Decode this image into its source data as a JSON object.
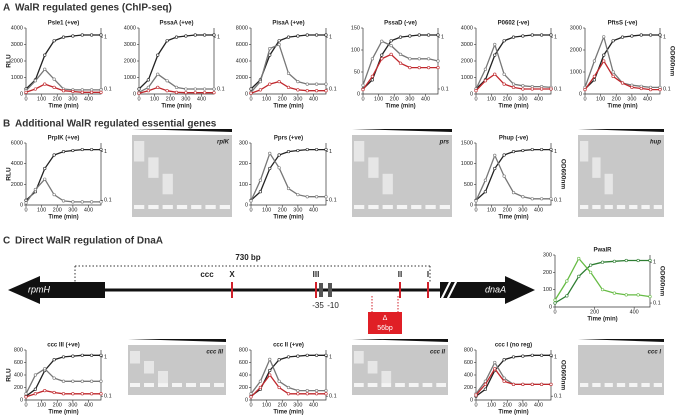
{
  "sections": [
    {
      "letter": "A",
      "title": "WalR regulated genes (ChIP-seq)"
    },
    {
      "letter": "B",
      "title": "Additional WalR regulated essential genes"
    },
    {
      "letter": "C",
      "title": "Direct WalR regulation of DnaA"
    }
  ],
  "gels": [
    {
      "label": "rplK"
    },
    {
      "label": "prs"
    },
    {
      "label": "hup"
    },
    {
      "label": "ccc III"
    },
    {
      "label": "ccc II"
    },
    {
      "label": "ccc I"
    }
  ],
  "diagram": {
    "span": "730 bp",
    "site": "ccc",
    "marks": [
      "X",
      "III",
      "II",
      "I"
    ],
    "m35": "-35",
    "m10": "-10",
    "left_gene": "rpmH",
    "right_gene": "dnaA",
    "delta": "Δ",
    "deletion": "56bp"
  },
  "chart_data": [
    {
      "type": "line",
      "title": "Psle1 (+ve)",
      "ylabel": "RLU",
      "xlabel": "Time (min)",
      "x": [
        0,
        60,
        120,
        180,
        240,
        300,
        360,
        420,
        480
      ],
      "xlim": [
        0,
        480
      ],
      "xticks": [
        0,
        100,
        200,
        300,
        400
      ],
      "ylim": [
        0,
        4000
      ],
      "yticks": [
        0,
        1000,
        2000,
        3000,
        4000
      ],
      "y2lim": [
        0.08,
        1.5
      ],
      "y2ticks": [
        0.1,
        1
      ],
      "y2log": true,
      "series": [
        {
          "color": "#222222",
          "axis": "y2",
          "values": [
            0.1,
            0.15,
            0.45,
            0.85,
            1,
            1.05,
            1.1,
            1.1,
            1.1
          ]
        },
        {
          "color": "#777777",
          "values": [
            200,
            800,
            1500,
            900,
            300,
            250,
            250,
            250,
            250
          ]
        },
        {
          "color": "#c0282d",
          "values": [
            100,
            300,
            600,
            400,
            200,
            150,
            100,
            100,
            100
          ]
        }
      ]
    },
    {
      "type": "line",
      "title": "PssaA (+ve)",
      "xlabel": "Time (min)",
      "x": [
        0,
        60,
        120,
        180,
        240,
        300,
        360,
        420,
        480
      ],
      "xlim": [
        0,
        480
      ],
      "xticks": [
        0,
        100,
        200,
        300,
        400
      ],
      "ylim": [
        0,
        4000
      ],
      "yticks": [
        0,
        1000,
        2000,
        3000,
        4000
      ],
      "y2lim": [
        0.08,
        1.5
      ],
      "y2ticks": [
        0.1,
        1
      ],
      "y2log": true,
      "series": [
        {
          "color": "#222222",
          "axis": "y2",
          "values": [
            0.1,
            0.15,
            0.45,
            0.85,
            1,
            1.05,
            1.1,
            1.1,
            1.1
          ]
        },
        {
          "color": "#777777",
          "values": [
            100,
            400,
            1200,
            800,
            400,
            300,
            300,
            300,
            300
          ]
        },
        {
          "color": "#c0282d",
          "values": [
            50,
            200,
            400,
            200,
            100,
            80,
            80,
            80,
            80
          ]
        }
      ]
    },
    {
      "type": "line",
      "title": "PisaA (+ve)",
      "xlabel": "Time (min)",
      "x": [
        0,
        60,
        120,
        180,
        240,
        300,
        360,
        420,
        480
      ],
      "xlim": [
        0,
        480
      ],
      "xticks": [
        0,
        100,
        200,
        300,
        400
      ],
      "ylim": [
        0,
        8000
      ],
      "yticks": [
        0,
        2000,
        4000,
        6000,
        8000
      ],
      "y2lim": [
        0.08,
        1.5
      ],
      "y2ticks": [
        0.1,
        1
      ],
      "y2log": true,
      "series": [
        {
          "color": "#222222",
          "axis": "y2",
          "values": [
            0.1,
            0.15,
            0.45,
            0.85,
            1,
            1.05,
            1.1,
            1.1,
            1.1
          ]
        },
        {
          "color": "#777777",
          "values": [
            200,
            1500,
            5500,
            6000,
            2500,
            1500,
            1200,
            1200,
            1200
          ]
        },
        {
          "color": "#c0282d",
          "values": [
            100,
            500,
            1200,
            1500,
            800,
            500,
            400,
            400,
            400
          ]
        }
      ]
    },
    {
      "type": "line",
      "title": "PssaD (-ve)",
      "xlabel": "Time (min)",
      "x": [
        0,
        60,
        120,
        180,
        240,
        300,
        360,
        420,
        480
      ],
      "xlim": [
        0,
        480
      ],
      "xticks": [
        0,
        100,
        200,
        300,
        400
      ],
      "ylim": [
        0,
        150
      ],
      "yticks": [
        0,
        50,
        100,
        150
      ],
      "y2lim": [
        0.08,
        1.5
      ],
      "y2ticks": [
        0.1,
        1
      ],
      "y2log": true,
      "series": [
        {
          "color": "#222222",
          "axis": "y2",
          "values": [
            0.1,
            0.15,
            0.45,
            0.85,
            1,
            1.05,
            1.1,
            1.1,
            1.1
          ]
        },
        {
          "color": "#777777",
          "values": [
            20,
            80,
            120,
            110,
            90,
            80,
            80,
            80,
            75
          ]
        },
        {
          "color": "#c0282d",
          "values": [
            10,
            40,
            80,
            90,
            70,
            60,
            60,
            60,
            60
          ]
        }
      ]
    },
    {
      "type": "line",
      "title": "P0602 (-ve)",
      "xlabel": "Time (min)",
      "x": [
        0,
        60,
        120,
        180,
        240,
        300,
        360,
        420,
        480
      ],
      "xlim": [
        0,
        480
      ],
      "xticks": [
        0,
        100,
        200,
        300,
        400
      ],
      "ylim": [
        0,
        4000
      ],
      "yticks": [
        0,
        1000,
        2000,
        3000,
        4000
      ],
      "y2lim": [
        0.08,
        1.5
      ],
      "y2ticks": [
        0.1,
        1
      ],
      "y2log": true,
      "series": [
        {
          "color": "#222222",
          "axis": "y2",
          "values": [
            0.1,
            0.15,
            0.45,
            0.85,
            1,
            1.05,
            1.1,
            1.1,
            1.1
          ]
        },
        {
          "color": "#777777",
          "values": [
            300,
            1500,
            3000,
            1200,
            600,
            500,
            450,
            450,
            400
          ]
        },
        {
          "color": "#c0282d",
          "values": [
            200,
            800,
            1200,
            600,
            400,
            300,
            300,
            300,
            300
          ]
        }
      ]
    },
    {
      "type": "line",
      "title": "PftsS (-ve)",
      "y2label": "OD600nm",
      "xlabel": "Time (min)",
      "x": [
        0,
        60,
        120,
        180,
        240,
        300,
        360,
        420,
        480
      ],
      "xlim": [
        0,
        480
      ],
      "xticks": [
        0,
        100,
        200,
        300,
        400
      ],
      "ylim": [
        0,
        3000
      ],
      "yticks": [
        0,
        1000,
        2000,
        3000
      ],
      "y2lim": [
        0.08,
        1.5
      ],
      "y2ticks": [
        0.1,
        1
      ],
      "y2log": true,
      "series": [
        {
          "color": "#222222",
          "axis": "y2",
          "values": [
            0.1,
            0.15,
            0.45,
            0.85,
            1,
            1.05,
            1.1,
            1.1,
            1.1
          ]
        },
        {
          "color": "#777777",
          "values": [
            300,
            1500,
            2600,
            1000,
            500,
            400,
            350,
            300,
            300
          ]
        },
        {
          "color": "#c0282d",
          "values": [
            200,
            800,
            1500,
            800,
            500,
            300,
            250,
            200,
            200
          ]
        }
      ]
    },
    {
      "type": "line",
      "title": "PrplK (+ve)",
      "ylabel": "RLU",
      "xlabel": "Time (min)",
      "x": [
        0,
        60,
        120,
        180,
        240,
        300,
        360,
        420,
        480
      ],
      "xlim": [
        0,
        480
      ],
      "xticks": [
        0,
        100,
        200,
        300,
        400
      ],
      "ylim": [
        0,
        6000
      ],
      "yticks": [
        0,
        2000,
        4000,
        6000
      ],
      "y2lim": [
        0.08,
        1.5
      ],
      "y2ticks": [
        0.1,
        1
      ],
      "y2log": true,
      "series": [
        {
          "color": "#222222",
          "axis": "y2",
          "values": [
            0.1,
            0.15,
            0.45,
            0.85,
            1,
            1.05,
            1.1,
            1.1,
            1.1
          ]
        },
        {
          "color": "#777777",
          "values": [
            200,
            1500,
            2500,
            1000,
            400,
            300,
            300,
            300,
            300
          ]
        }
      ]
    },
    {
      "type": "line",
      "title": "Pprs (+ve)",
      "xlabel": "Time (min)",
      "x": [
        0,
        60,
        120,
        180,
        240,
        300,
        360,
        420,
        480
      ],
      "xlim": [
        0,
        480
      ],
      "xticks": [
        0,
        100,
        200,
        300,
        400
      ],
      "ylim": [
        0,
        300
      ],
      "yticks": [
        0,
        100,
        200,
        300
      ],
      "y2lim": [
        0.08,
        1.5
      ],
      "y2ticks": [
        0.1,
        1
      ],
      "y2log": true,
      "series": [
        {
          "color": "#222222",
          "axis": "y2",
          "values": [
            0.1,
            0.15,
            0.45,
            0.85,
            1,
            1.05,
            1.1,
            1.1,
            1.1
          ]
        },
        {
          "color": "#777777",
          "values": [
            20,
            120,
            250,
            180,
            80,
            50,
            40,
            40,
            40
          ]
        }
      ]
    },
    {
      "type": "line",
      "title": "Phup (-ve)",
      "y2label": "OD600nm",
      "xlabel": "Time (min)",
      "x": [
        0,
        60,
        120,
        180,
        240,
        300,
        360,
        420,
        480
      ],
      "xlim": [
        0,
        480
      ],
      "xticks": [
        0,
        100,
        200,
        300,
        400
      ],
      "ylim": [
        0,
        1500
      ],
      "yticks": [
        0,
        500,
        1000,
        1500
      ],
      "y2lim": [
        0.08,
        1.5
      ],
      "y2ticks": [
        0.1,
        1
      ],
      "y2log": true,
      "series": [
        {
          "color": "#222222",
          "axis": "y2",
          "values": [
            0.1,
            0.15,
            0.45,
            0.85,
            1,
            1.05,
            1.1,
            1.1,
            1.1
          ]
        },
        {
          "color": "#777777",
          "values": [
            100,
            600,
            1200,
            700,
            300,
            200,
            150,
            150,
            150
          ]
        }
      ]
    },
    {
      "type": "line",
      "title": "PwalR",
      "y2label": "OD600nm",
      "xlabel": "Time (min)",
      "x": [
        0,
        60,
        120,
        180,
        240,
        300,
        360,
        420,
        480
      ],
      "xlim": [
        0,
        480
      ],
      "xticks": [
        0,
        200,
        400
      ],
      "ylim": [
        0,
        300
      ],
      "yticks": [
        0,
        100,
        200,
        300
      ],
      "y2lim": [
        0.08,
        1.5
      ],
      "y2ticks": [
        0.1,
        1
      ],
      "y2log": true,
      "series": [
        {
          "color": "#2e7d32",
          "axis": "y2",
          "values": [
            0.1,
            0.15,
            0.45,
            0.85,
            1,
            1.05,
            1.1,
            1.1,
            1.1
          ]
        },
        {
          "color": "#66bb44",
          "values": [
            40,
            150,
            280,
            200,
            100,
            80,
            70,
            70,
            60
          ]
        }
      ]
    },
    {
      "type": "line",
      "title": "ccc III (+ve)",
      "ylabel": "RLU",
      "xlabel": "Time (min)",
      "x": [
        0,
        60,
        120,
        180,
        240,
        300,
        360,
        420,
        480
      ],
      "xlim": [
        0,
        480
      ],
      "xticks": [
        0,
        100,
        200,
        300,
        400
      ],
      "ylim": [
        0,
        800
      ],
      "yticks": [
        0,
        200,
        400,
        600,
        800
      ],
      "y2lim": [
        0.08,
        1.5
      ],
      "y2ticks": [
        0.1,
        1
      ],
      "y2log": true,
      "series": [
        {
          "color": "#222222",
          "axis": "y2",
          "values": [
            0.1,
            0.15,
            0.45,
            0.85,
            1,
            1.05,
            1.1,
            1.1,
            1.1
          ]
        },
        {
          "color": "#777777",
          "values": [
            100,
            400,
            500,
            350,
            300,
            300,
            300,
            300,
            300
          ]
        },
        {
          "color": "#c0282d",
          "values": [
            50,
            100,
            150,
            120,
            100,
            100,
            100,
            100,
            100
          ]
        }
      ]
    },
    {
      "type": "line",
      "title": "ccc II (+ve)",
      "xlabel": "Time (min)",
      "x": [
        0,
        60,
        120,
        180,
        240,
        300,
        360,
        420,
        480
      ],
      "xlim": [
        0,
        480
      ],
      "xticks": [
        0,
        100,
        200,
        300,
        400
      ],
      "ylim": [
        0,
        800
      ],
      "yticks": [
        0,
        200,
        400,
        600,
        800
      ],
      "y2lim": [
        0.08,
        1.5
      ],
      "y2ticks": [
        0.1,
        1
      ],
      "y2log": true,
      "series": [
        {
          "color": "#222222",
          "axis": "y2",
          "values": [
            0.1,
            0.15,
            0.45,
            0.85,
            1,
            1.05,
            1.1,
            1.1,
            1.1
          ]
        },
        {
          "color": "#777777",
          "values": [
            100,
            300,
            650,
            300,
            200,
            150,
            150,
            150,
            150
          ]
        },
        {
          "color": "#c0282d",
          "values": [
            50,
            200,
            400,
            200,
            100,
            100,
            100,
            100,
            100
          ]
        }
      ]
    },
    {
      "type": "line",
      "title": "ccc I (no reg)",
      "y2label": "OD600nm",
      "xlabel": "Time (min)",
      "x": [
        0,
        60,
        120,
        180,
        240,
        300,
        360,
        420,
        480
      ],
      "xlim": [
        0,
        480
      ],
      "xticks": [
        0,
        100,
        200,
        300,
        400
      ],
      "ylim": [
        0,
        800
      ],
      "yticks": [
        0,
        200,
        400,
        600,
        800
      ],
      "y2lim": [
        0.08,
        1.5
      ],
      "y2ticks": [
        0.1,
        1
      ],
      "y2log": true,
      "series": [
        {
          "color": "#222222",
          "axis": "y2",
          "values": [
            0.1,
            0.15,
            0.45,
            0.85,
            1,
            1.05,
            1.1,
            1.1,
            1.1
          ]
        },
        {
          "color": "#777777",
          "values": [
            100,
            300,
            600,
            350,
            250,
            250,
            250,
            250,
            250
          ]
        },
        {
          "color": "#c0282d",
          "values": [
            80,
            250,
            500,
            300,
            250,
            250,
            250,
            250,
            250
          ]
        }
      ]
    }
  ]
}
